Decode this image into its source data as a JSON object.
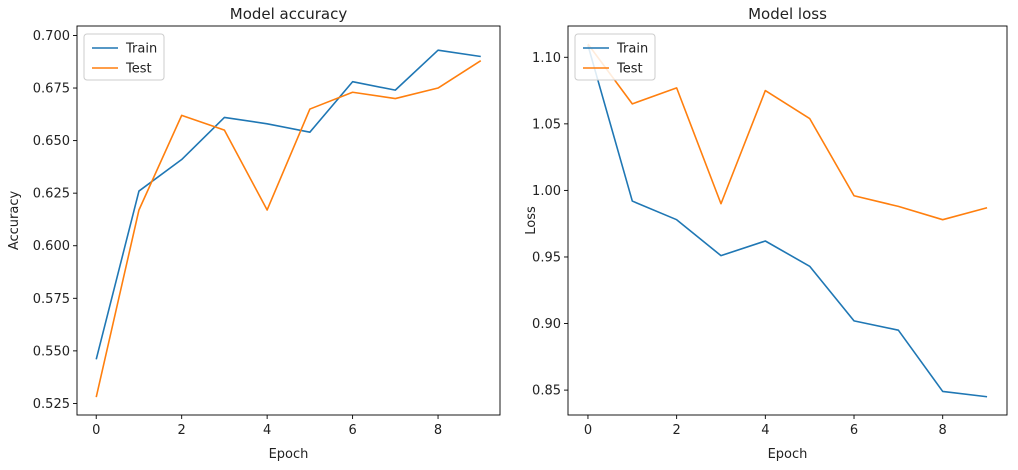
{
  "chart_data": [
    {
      "type": "line",
      "title": "Model accuracy",
      "xlabel": "Epoch",
      "ylabel": "Accuracy",
      "x": [
        0,
        1,
        2,
        3,
        4,
        5,
        6,
        7,
        8,
        9
      ],
      "xlim": [
        -0.45,
        9.45
      ],
      "ylim": [
        0.5195,
        0.7045
      ],
      "xticks": [
        0,
        2,
        4,
        6,
        8
      ],
      "yticks": [
        0.525,
        0.55,
        0.575,
        0.6,
        0.625,
        0.65,
        0.675,
        0.7
      ],
      "ytick_labels": [
        "0.525",
        "0.550",
        "0.575",
        "0.600",
        "0.625",
        "0.650",
        "0.675",
        "0.700"
      ],
      "grid": false,
      "legend": "upper-left",
      "series": [
        {
          "name": "Train",
          "color": "#1f77b4",
          "values": [
            0.546,
            0.626,
            0.641,
            0.661,
            0.658,
            0.654,
            0.678,
            0.674,
            0.693,
            0.69
          ]
        },
        {
          "name": "Test",
          "color": "#ff7f0e",
          "values": [
            0.528,
            0.617,
            0.662,
            0.655,
            0.617,
            0.665,
            0.673,
            0.67,
            0.675,
            0.688
          ]
        }
      ]
    },
    {
      "type": "line",
      "title": "Model loss",
      "xlabel": "Epoch",
      "ylabel": "Loss",
      "x": [
        0,
        1,
        2,
        3,
        4,
        5,
        6,
        7,
        8,
        9
      ],
      "xlim": [
        -0.45,
        9.45
      ],
      "ylim": [
        0.8313,
        1.1235
      ],
      "xticks": [
        0,
        2,
        4,
        6,
        8
      ],
      "yticks": [
        0.85,
        0.9,
        0.95,
        1.0,
        1.05,
        1.1
      ],
      "ytick_labels": [
        "0.85",
        "0.90",
        "0.95",
        "1.00",
        "1.05",
        "1.10"
      ],
      "grid": false,
      "legend": "upper-left",
      "series": [
        {
          "name": "Train",
          "color": "#1f77b4",
          "values": [
            1.109,
            0.992,
            0.978,
            0.951,
            0.962,
            0.943,
            0.902,
            0.895,
            0.849,
            0.845
          ]
        },
        {
          "name": "Test",
          "color": "#ff7f0e",
          "values": [
            1.11,
            1.065,
            1.077,
            0.99,
            1.075,
            1.054,
            0.996,
            0.988,
            0.978,
            0.987
          ]
        }
      ]
    }
  ]
}
